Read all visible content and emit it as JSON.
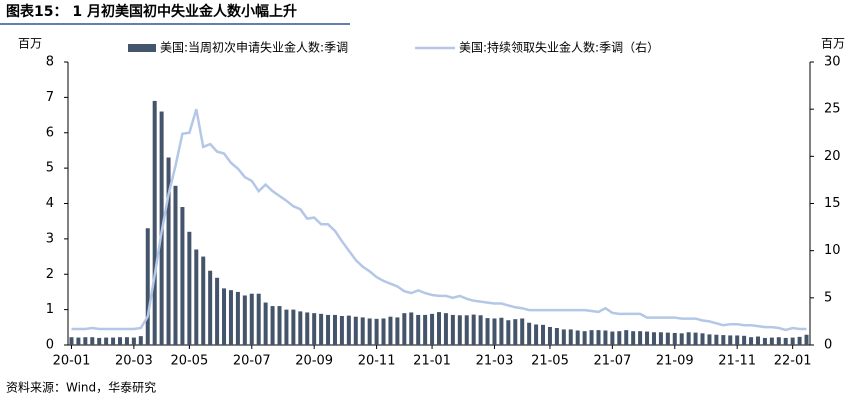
{
  "title": "图表15： 1 月初美国初中失业金人数小幅上升",
  "source": "资料来源：Wind，华泰研究",
  "chart_data": {
    "type": "bar-line",
    "y_label": "百万",
    "y2_label": "百万",
    "categories": [
      "20-01",
      null,
      null,
      null,
      null,
      null,
      null,
      null,
      null,
      "20-03",
      null,
      null,
      null,
      null,
      null,
      null,
      null,
      "20-05",
      null,
      null,
      null,
      null,
      null,
      null,
      null,
      null,
      "20-07",
      null,
      null,
      null,
      null,
      null,
      null,
      null,
      null,
      "20-09",
      null,
      null,
      null,
      null,
      null,
      null,
      null,
      null,
      "20-11",
      null,
      null,
      null,
      null,
      null,
      null,
      null,
      "21-01",
      null,
      null,
      null,
      null,
      null,
      null,
      null,
      null,
      "21-03",
      null,
      null,
      null,
      null,
      null,
      null,
      null,
      "21-05",
      null,
      null,
      null,
      null,
      null,
      null,
      null,
      null,
      "21-07",
      null,
      null,
      null,
      null,
      null,
      null,
      null,
      null,
      "21-09",
      null,
      null,
      null,
      null,
      null,
      null,
      null,
      null,
      "21-11",
      null,
      null,
      null,
      null,
      null,
      null,
      null,
      "22-01",
      null,
      null
    ],
    "series": [
      {
        "name": "美国:当周初次申请失业金人数:季调",
        "type": "bar",
        "color": "#44546a",
        "values": [
          0.22,
          0.21,
          0.22,
          0.22,
          0.2,
          0.21,
          0.21,
          0.22,
          0.22,
          0.21,
          0.25,
          3.3,
          6.9,
          6.6,
          5.3,
          4.5,
          3.9,
          3.2,
          2.7,
          2.5,
          2.1,
          1.9,
          1.6,
          1.55,
          1.5,
          1.4,
          1.45,
          1.45,
          1.2,
          1.1,
          1.1,
          1.0,
          1.0,
          0.95,
          0.92,
          0.9,
          0.88,
          0.85,
          0.85,
          0.82,
          0.83,
          0.8,
          0.78,
          0.75,
          0.74,
          0.75,
          0.8,
          0.78,
          0.9,
          0.92,
          0.85,
          0.85,
          0.88,
          0.93,
          0.9,
          0.85,
          0.84,
          0.84,
          0.86,
          0.84,
          0.76,
          0.75,
          0.77,
          0.7,
          0.73,
          0.75,
          0.63,
          0.58,
          0.57,
          0.51,
          0.48,
          0.44,
          0.44,
          0.41,
          0.39,
          0.42,
          0.42,
          0.41,
          0.38,
          0.39,
          0.42,
          0.39,
          0.39,
          0.38,
          0.36,
          0.36,
          0.35,
          0.34,
          0.33,
          0.36,
          0.35,
          0.33,
          0.3,
          0.29,
          0.28,
          0.27,
          0.27,
          0.26,
          0.22,
          0.24,
          0.2,
          0.21,
          0.22,
          0.2,
          0.21,
          0.23,
          0.29
        ]
      },
      {
        "name": "美国:持续领取失业金人数:季调（右）",
        "type": "line",
        "axis": "y2",
        "color": "#b4c7e7",
        "values": [
          1.7,
          1.7,
          1.7,
          1.8,
          1.7,
          1.7,
          1.7,
          1.7,
          1.7,
          1.7,
          1.8,
          3.0,
          7.4,
          12,
          16,
          19,
          22.4,
          22.5,
          25,
          21,
          21.3,
          20.5,
          20.3,
          19.3,
          18.7,
          17.8,
          17.4,
          16.3,
          17,
          16.3,
          15.8,
          15.3,
          14.7,
          14.4,
          13.4,
          13.5,
          12.8,
          12.8,
          12.1,
          11,
          10,
          9,
          8.3,
          7.8,
          7.2,
          6.8,
          6.5,
          6.2,
          5.7,
          5.5,
          5.8,
          5.5,
          5.3,
          5.2,
          5.2,
          5,
          5.2,
          4.9,
          4.7,
          4.6,
          4.5,
          4.4,
          4.4,
          4.2,
          4,
          3.9,
          3.7,
          3.7,
          3.7,
          3.7,
          3.7,
          3.7,
          3.7,
          3.7,
          3.7,
          3.6,
          3.5,
          3.9,
          3.4,
          3.3,
          3.3,
          3.3,
          3.3,
          2.9,
          2.9,
          2.9,
          2.9,
          2.9,
          2.8,
          2.8,
          2.8,
          2.6,
          2.5,
          2.3,
          2.1,
          2.2,
          2.2,
          2.1,
          2.1,
          2.0,
          1.9,
          1.9,
          1.8,
          1.6,
          1.8,
          1.7,
          1.7
        ]
      }
    ],
    "ylim": [
      0,
      8
    ],
    "yticks": [
      0,
      1,
      2,
      3,
      4,
      5,
      6,
      7,
      8
    ],
    "y2lim": [
      0,
      30
    ],
    "y2ticks": [
      0,
      5,
      10,
      15,
      20,
      25,
      30
    ]
  }
}
